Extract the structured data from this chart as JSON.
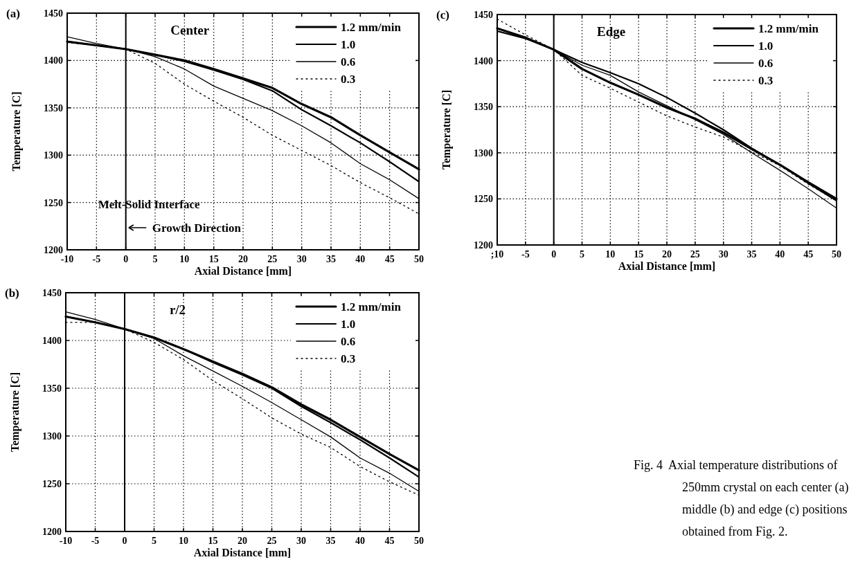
{
  "chart_data": [
    {
      "type": "line",
      "title": "(a)",
      "xlabel": "Axial Distance [mm]",
      "ylabel": "Temperature [C]",
      "annotations": [
        "Center",
        "Growth Direction"
      ],
      "x": [
        -10,
        -5,
        0,
        5,
        10,
        15,
        20,
        25,
        30,
        35,
        40,
        45,
        50
      ],
      "xlim": [
        -10,
        50
      ],
      "xticks": [
        -10,
        -5,
        0,
        5,
        10,
        15,
        20,
        25,
        30,
        35,
        40,
        45,
        50
      ],
      "ylim": [
        1200,
        1450
      ],
      "yticks": [
        1200,
        1250,
        1300,
        1350,
        1400,
        1450
      ],
      "grid": true,
      "legend": "top right",
      "ref_lines": [
        {
          "axis": "x",
          "value": 0,
          "label": "Melt-Solid Interface"
        }
      ],
      "series": [
        {
          "name": "1.2 mm/min",
          "color": "#000000",
          "line_style": "solid",
          "values": [
            1420,
            1416,
            1412,
            1406,
            1400,
            1391,
            1381,
            1371,
            1354,
            1340,
            1321,
            1303,
            1285
          ]
        },
        {
          "name": "1.0",
          "color": "#000000",
          "line_style": "solid",
          "values": [
            1420,
            1416,
            1412,
            1406,
            1399,
            1390,
            1380,
            1368,
            1348,
            1331,
            1313,
            1293,
            1272
          ]
        },
        {
          "name": "0.6",
          "color": "#000000",
          "line_style": "solid",
          "values": [
            1425,
            1418,
            1412,
            1404,
            1391,
            1373,
            1360,
            1347,
            1331,
            1313,
            1291,
            1274,
            1254
          ]
        },
        {
          "name": "0.3",
          "color": "#000000",
          "line_style": "dotted",
          "values": [
            1419,
            1416,
            1412,
            1397,
            1375,
            1357,
            1340,
            1321,
            1305,
            1289,
            1271,
            1255,
            1238
          ]
        }
      ]
    },
    {
      "type": "line",
      "title": "(c)",
      "xlabel": "Axial Distance [mm]",
      "ylabel": "Temperature [C]",
      "annotations": [
        "Edge"
      ],
      "x": [
        -10,
        -5,
        0,
        5,
        10,
        15,
        20,
        25,
        30,
        35,
        40,
        45,
        50
      ],
      "xlim": [
        -10,
        50
      ],
      "xticks": [
        {
          "value": -10,
          "label": ";10"
        },
        -5,
        0,
        5,
        10,
        15,
        20,
        25,
        30,
        35,
        40,
        45,
        50
      ],
      "ylim": [
        1200,
        1450
      ],
      "yticks": [
        1200,
        1250,
        1300,
        1350,
        1400,
        1450
      ],
      "grid": true,
      "legend": "top right",
      "ref_lines": [
        {
          "axis": "x",
          "value": 0
        }
      ],
      "series": [
        {
          "name": "1.2 mm/min",
          "color": "#000000",
          "line_style": "solid",
          "values": [
            1435,
            1425,
            1412,
            1391,
            1376,
            1363,
            1349,
            1337,
            1322,
            1304,
            1287,
            1268,
            1250
          ]
        },
        {
          "name": "1.0",
          "color": "#000000",
          "line_style": "solid",
          "values": [
            1432,
            1424,
            1412,
            1398,
            1387,
            1375,
            1360,
            1343,
            1325,
            1305,
            1287,
            1267,
            1248
          ]
        },
        {
          "name": "0.6",
          "color": "#000000",
          "line_style": "solid",
          "values": [
            1432,
            1424,
            1412,
            1395,
            1384,
            1366,
            1351,
            1336,
            1320,
            1300,
            1281,
            1261,
            1240
          ]
        },
        {
          "name": "0.3",
          "color": "#000000",
          "line_style": "dotted",
          "values": [
            1445,
            1428,
            1412,
            1384,
            1370,
            1355,
            1340,
            1328,
            1317,
            1301,
            1286,
            1266,
            1248
          ]
        }
      ]
    },
    {
      "type": "line",
      "title": "(b)",
      "xlabel": "Axial Distance [mm]",
      "ylabel": "Temperature [C]",
      "annotations": [
        "r/2"
      ],
      "x": [
        -10,
        -5,
        0,
        5,
        10,
        15,
        20,
        25,
        30,
        35,
        40,
        45,
        50
      ],
      "xlim": [
        -10,
        50
      ],
      "xticks": [
        -10,
        -5,
        0,
        5,
        10,
        15,
        20,
        25,
        30,
        35,
        40,
        45,
        50
      ],
      "ylim": [
        1200,
        1450
      ],
      "yticks": [
        1200,
        1250,
        1300,
        1350,
        1400,
        1450
      ],
      "grid": true,
      "legend": "top right",
      "ref_lines": [
        {
          "axis": "x",
          "value": 0
        }
      ],
      "series": [
        {
          "name": "1.2 mm/min",
          "color": "#000000",
          "line_style": "solid",
          "values": [
            1425,
            1419,
            1412,
            1403,
            1391,
            1378,
            1365,
            1351,
            1333,
            1317,
            1299,
            1281,
            1264
          ]
        },
        {
          "name": "1.0",
          "color": "#000000",
          "line_style": "solid",
          "values": [
            1425,
            1419,
            1412,
            1403,
            1391,
            1377,
            1364,
            1350,
            1331,
            1314,
            1296,
            1277,
            1257
          ]
        },
        {
          "name": "0.6",
          "color": "#000000",
          "line_style": "solid",
          "values": [
            1430,
            1422,
            1412,
            1402,
            1384,
            1368,
            1352,
            1335,
            1317,
            1299,
            1277,
            1261,
            1242
          ]
        },
        {
          "name": "0.3",
          "color": "#000000",
          "line_style": "dotted",
          "values": [
            1419,
            1419,
            1412,
            1398,
            1380,
            1358,
            1339,
            1319,
            1302,
            1288,
            1268,
            1252,
            1238
          ]
        }
      ]
    },
    {
      "type": "other",
      "annotations": [
        "Fig. 4  Axial temperature distributions of 250mm crystal on each center (a) middle (b) and edge (c) positions obtained from Fig. 2."
      ]
    }
  ]
}
